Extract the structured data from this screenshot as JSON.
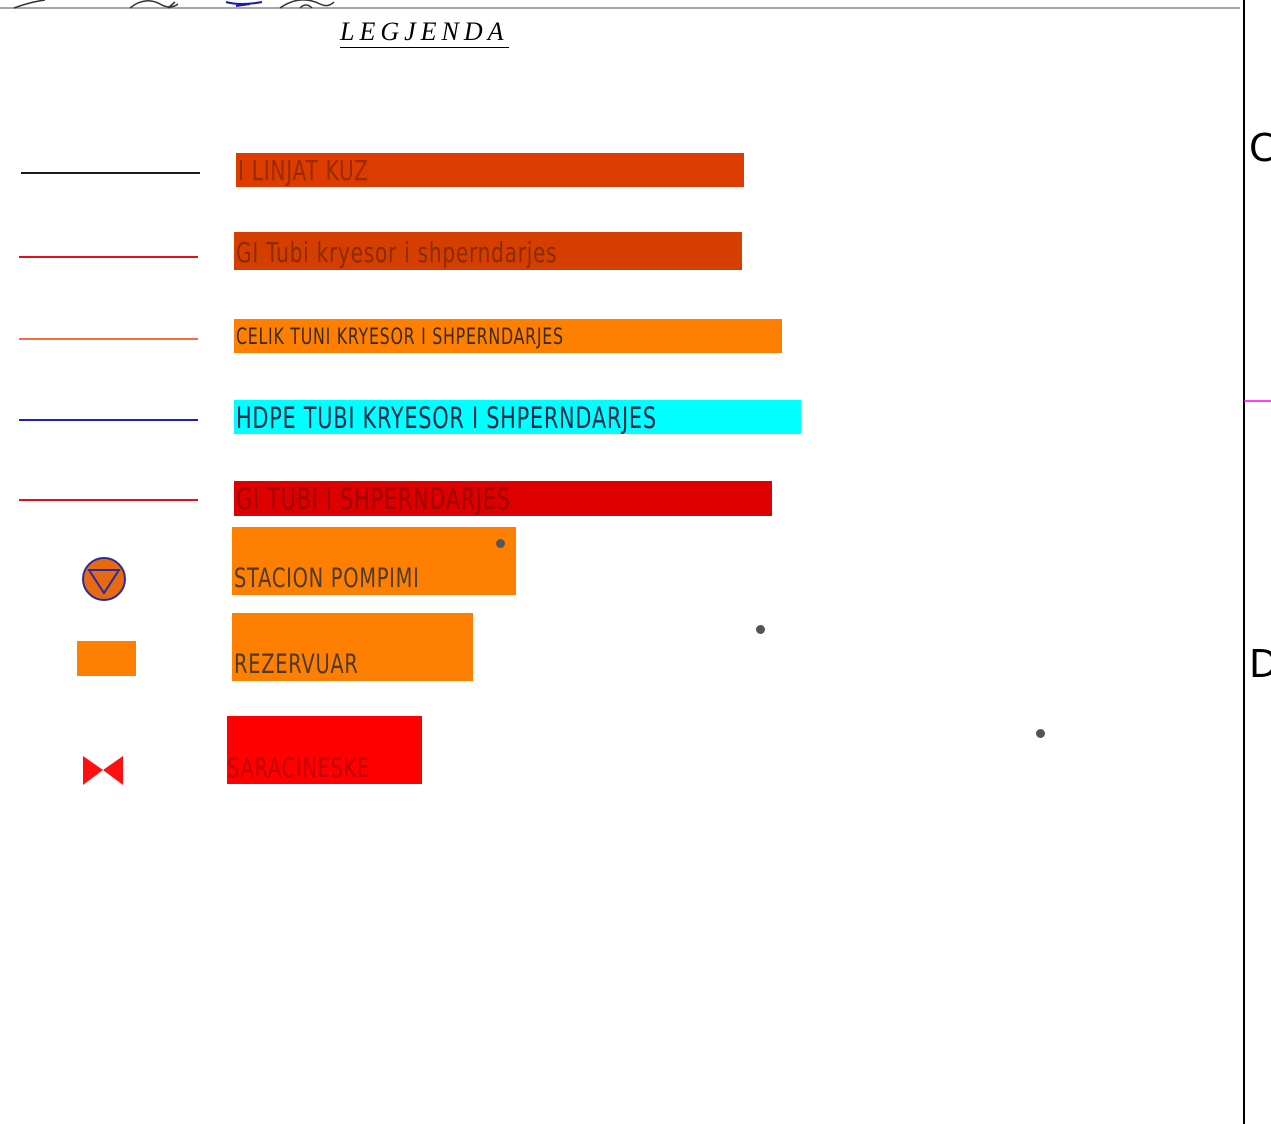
{
  "legend": {
    "title": "LEGJENDA",
    "items": [
      {
        "symbol": "black-line-icon",
        "symbol_color": "#1a1a1a",
        "label": "I LINJAT KUZ",
        "box_color": "#dc3c00",
        "text_color": "#9a2a00"
      },
      {
        "symbol": "red-line-icon",
        "symbol_color": "#e0101a",
        "label": "GI Tubi kryesor i shperndarjes",
        "box_color": "#d43f00",
        "text_color": "#8c2a00"
      },
      {
        "symbol": "orange-line-icon",
        "symbol_color": "#ff6a3a",
        "label": "CELIK TUNI KRYESOR I SHPERNDARJES",
        "box_color": "#ff8000",
        "text_color": "#3a2a1a"
      },
      {
        "symbol": "blue-line-icon",
        "symbol_color": "#1e1ec8",
        "label": "HDPE TUBI KRYESOR I SHPERNDARJES",
        "box_color": "#00ffff",
        "text_color": "#1a2a4a"
      },
      {
        "symbol": "red-line-icon",
        "symbol_color": "#e0101a",
        "label": "GI TUBI I SHPERNDARJES",
        "box_color": "#dc0000",
        "text_color": "#a00000"
      },
      {
        "symbol": "pump-station-icon",
        "symbol_color": "#e86a10",
        "label": "STACION POMPIMI",
        "box_color": "#ff8000",
        "text_color": "#4a3a2a"
      },
      {
        "symbol": "reservoir-icon",
        "symbol_color": "#ff8000",
        "label": "REZERVUAR",
        "box_color": "#ff8000",
        "text_color": "#4a3a2a"
      },
      {
        "symbol": "valve-icon",
        "symbol_color": "#ff1010",
        "label": "SARACINESKE",
        "box_color": "#ff0000",
        "text_color": "#c00000"
      }
    ]
  },
  "side_labels": [
    "C",
    "D"
  ],
  "colors": {
    "border": "#000000",
    "magenta_tick": "#ff00ff",
    "top_rule": "#8a8a8a"
  }
}
